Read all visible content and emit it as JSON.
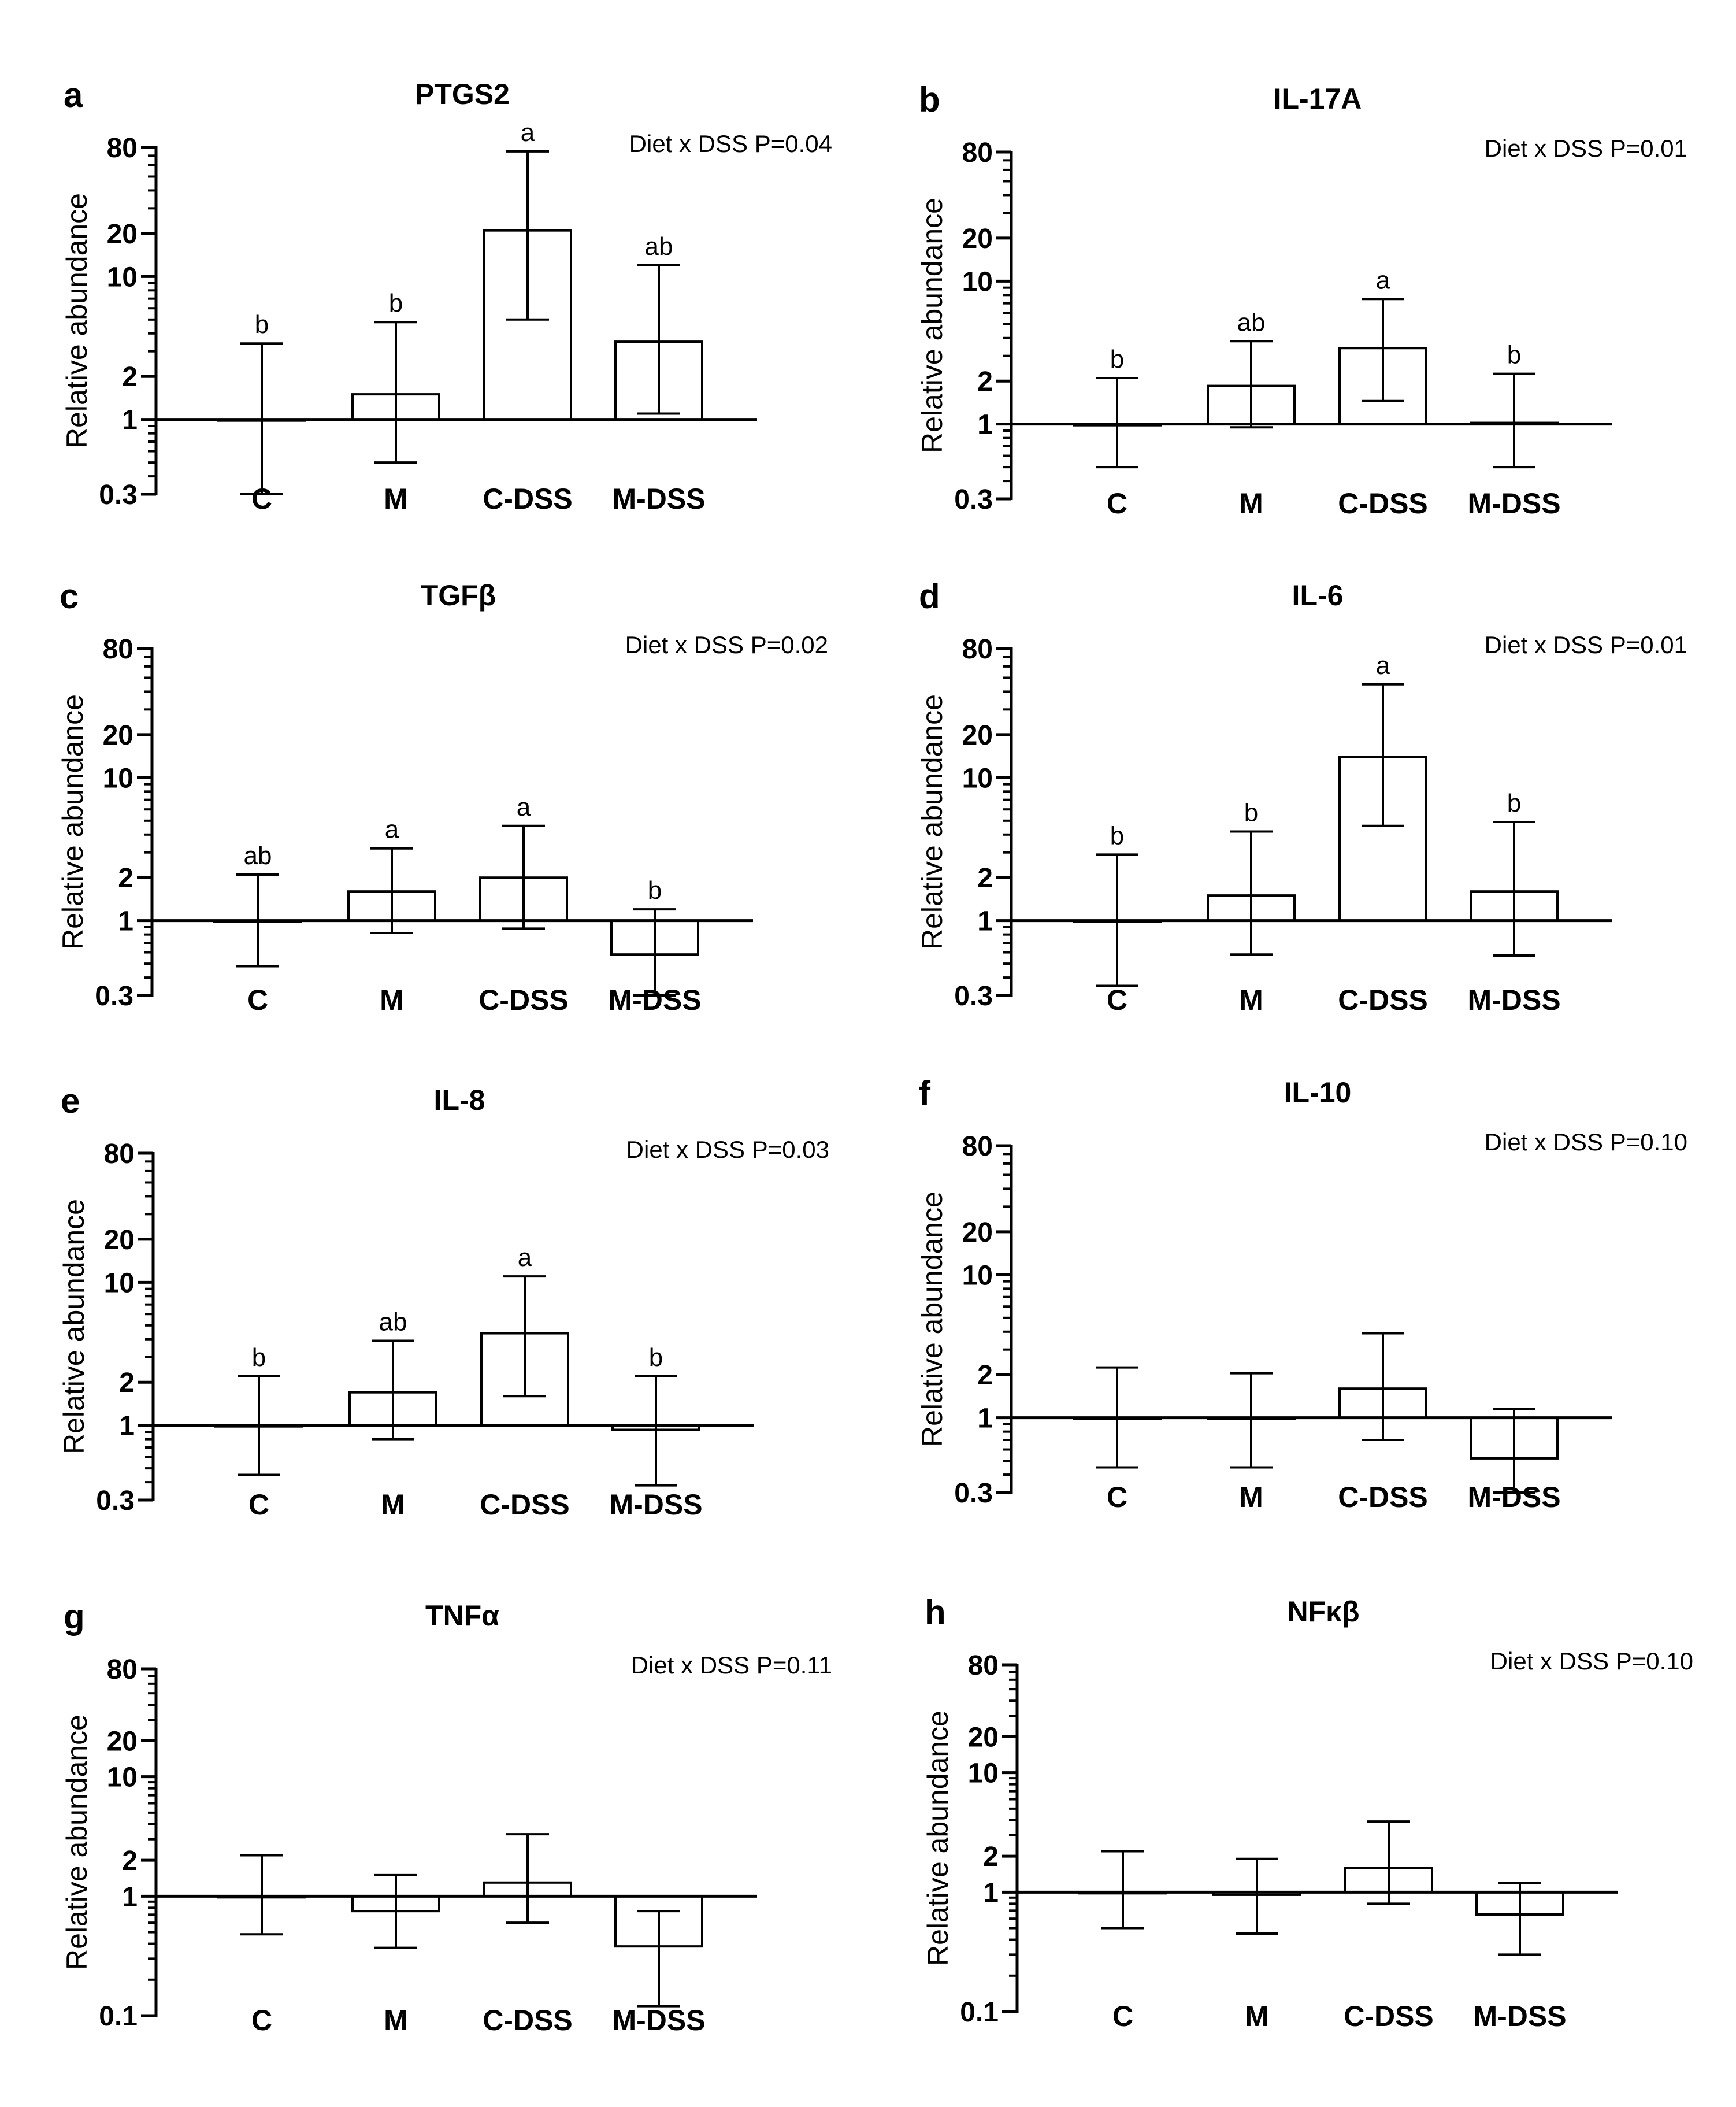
{
  "figure": {
    "panels": [
      {
        "letter": "a",
        "title": "PTGS2",
        "annotation": "Diet x DSS P=0.04",
        "chart_data": {
          "type": "bar",
          "title": "PTGS2",
          "ylabel": "Relative abundance",
          "yscale": "log",
          "ylim": [
            0.3,
            80
          ],
          "yticks": [
            "0.3",
            "1",
            "2",
            "10",
            "20",
            "80"
          ],
          "categories": [
            "C",
            "M",
            "C-DSS",
            "M-DSS"
          ],
          "values": [
            1.0,
            1.5,
            21,
            3.5
          ],
          "error_low": [
            0.3,
            0.5,
            5.0,
            1.1
          ],
          "error_high": [
            3.4,
            4.8,
            75,
            12
          ],
          "significance_letters": [
            "b",
            "b",
            "a",
            "ab"
          ]
        }
      },
      {
        "letter": "b",
        "title": "IL-17A",
        "annotation": "Diet x DSS P=0.01",
        "chart_data": {
          "type": "bar",
          "title": "IL-17A",
          "ylabel": "Relative abundance",
          "yscale": "log",
          "ylim": [
            0.3,
            80
          ],
          "yticks": [
            "0.3",
            "1",
            "2",
            "10",
            "20",
            "80"
          ],
          "categories": [
            "C",
            "M",
            "C-DSS",
            "M-DSS"
          ],
          "values": [
            1.0,
            1.85,
            3.4,
            1.02
          ],
          "error_low": [
            0.5,
            0.95,
            1.45,
            0.5
          ],
          "error_high": [
            2.1,
            3.8,
            7.5,
            2.25
          ],
          "significance_letters": [
            "b",
            "ab",
            "a",
            "b"
          ]
        }
      },
      {
        "letter": "c",
        "title": "TGFβ",
        "annotation": "Diet x DSS P=0.02",
        "chart_data": {
          "type": "bar",
          "title": "TGFβ",
          "ylabel": "Relative abundance",
          "yscale": "log",
          "ylim": [
            0.3,
            80
          ],
          "yticks": [
            "0.3",
            "1",
            "2",
            "10",
            "20",
            "80"
          ],
          "categories": [
            "C",
            "M",
            "C-DSS",
            "M-DSS"
          ],
          "values": [
            1.0,
            1.6,
            2.0,
            0.58
          ],
          "error_low": [
            0.48,
            0.82,
            0.88,
            0.3
          ],
          "error_high": [
            2.1,
            3.2,
            4.6,
            1.2
          ],
          "significance_letters": [
            "ab",
            "a",
            "a",
            "b"
          ]
        }
      },
      {
        "letter": "d",
        "title": "IL-6",
        "annotation": "Diet x DSS P=0.01",
        "chart_data": {
          "type": "bar",
          "title": "IL-6",
          "ylabel": "Relative abundance",
          "yscale": "log",
          "ylim": [
            0.3,
            80
          ],
          "yticks": [
            "0.3",
            "1",
            "2",
            "10",
            "20",
            "80"
          ],
          "categories": [
            "C",
            "M",
            "C-DSS",
            "M-DSS"
          ],
          "values": [
            1.0,
            1.5,
            14,
            1.6
          ],
          "error_low": [
            0.35,
            0.58,
            4.6,
            0.57
          ],
          "error_high": [
            2.9,
            4.2,
            45,
            4.9
          ],
          "significance_letters": [
            "b",
            "b",
            "a",
            "b"
          ]
        }
      },
      {
        "letter": "e",
        "title": "IL-8",
        "annotation": "Diet x DSS P=0.03",
        "chart_data": {
          "type": "bar",
          "title": "IL-8",
          "ylabel": "Relative abundance",
          "yscale": "log",
          "ylim": [
            0.3,
            80
          ],
          "yticks": [
            "0.3",
            "1",
            "2",
            "10",
            "20",
            "80"
          ],
          "categories": [
            "C",
            "M",
            "C-DSS",
            "M-DSS"
          ],
          "values": [
            1.0,
            1.7,
            4.4,
            0.93
          ],
          "error_low": [
            0.45,
            0.8,
            1.6,
            0.38
          ],
          "error_high": [
            2.2,
            3.9,
            11,
            2.2
          ],
          "significance_letters": [
            "b",
            "ab",
            "a",
            "b"
          ]
        }
      },
      {
        "letter": "f",
        "title": "IL-10",
        "annotation": "Diet x DSS P=0.10",
        "chart_data": {
          "type": "bar",
          "title": "IL-10",
          "ylabel": "Relative abundance",
          "yscale": "log",
          "ylim": [
            0.3,
            80
          ],
          "yticks": [
            "0.3",
            "1",
            "2",
            "10",
            "20",
            "80"
          ],
          "categories": [
            "C",
            "M",
            "C-DSS",
            "M-DSS"
          ],
          "values": [
            1.0,
            0.98,
            1.6,
            0.52
          ],
          "error_low": [
            0.45,
            0.45,
            0.7,
            0.3
          ],
          "error_high": [
            2.25,
            2.05,
            3.9,
            1.15
          ],
          "significance_letters": [
            "",
            "",
            "",
            ""
          ]
        }
      },
      {
        "letter": "g",
        "title": "TNFα",
        "annotation": "Diet x DSS P=0.11",
        "chart_data": {
          "type": "bar",
          "title": "TNFα",
          "ylabel": "Relative abundance",
          "yscale": "log",
          "ylim": [
            0.1,
            80
          ],
          "yticks": [
            "0.1",
            "1",
            "2",
            "10",
            "20",
            "80"
          ],
          "categories": [
            "C",
            "M",
            "C-DSS",
            "M-DSS"
          ],
          "values": [
            1.0,
            0.75,
            1.3,
            0.38
          ],
          "error_low": [
            0.48,
            0.37,
            0.6,
            0.12
          ],
          "error_high": [
            2.2,
            1.5,
            3.3,
            0.75
          ],
          "significance_letters": [
            "",
            "",
            "",
            ""
          ]
        }
      },
      {
        "letter": "h",
        "title": "NFκβ",
        "annotation": "Diet x DSS P=0.10",
        "chart_data": {
          "type": "bar",
          "title": "NFκβ",
          "ylabel": "Relative abundance",
          "yscale": "log",
          "ylim": [
            0.1,
            80
          ],
          "yticks": [
            "0.1",
            "1",
            "2",
            "10",
            "20",
            "80"
          ],
          "categories": [
            "C",
            "M",
            "C-DSS",
            "M-DSS"
          ],
          "values": [
            1.0,
            0.95,
            1.6,
            0.65
          ],
          "error_low": [
            0.5,
            0.45,
            0.8,
            0.3
          ],
          "error_high": [
            2.2,
            1.9,
            3.9,
            1.2
          ],
          "significance_letters": [
            "",
            "",
            "",
            ""
          ]
        }
      }
    ]
  }
}
